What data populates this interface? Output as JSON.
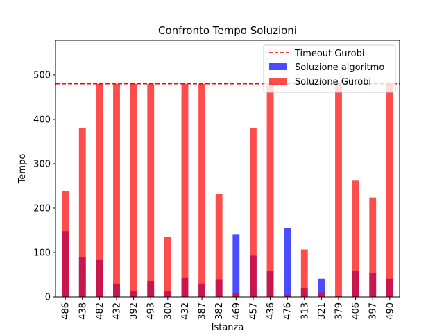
{
  "chart_data": {
    "type": "bar",
    "title": "Confronto Tempo Soluzioni",
    "xlabel": "Istanza",
    "ylabel": "Tempo",
    "categories": [
      "486",
      "438",
      "482",
      "432",
      "392",
      "493",
      "300",
      "432",
      "387",
      "382",
      "469",
      "457",
      "436",
      "476",
      "313",
      "321",
      "379",
      "406",
      "397",
      "490"
    ],
    "series": [
      {
        "name": "Soluzione algoritmo",
        "color": "#0000ff",
        "opacity": 0.7,
        "values": [
          148,
          90,
          83,
          30,
          13,
          36,
          14,
          44,
          30,
          40,
          140,
          93,
          58,
          155,
          20,
          41,
          3,
          58,
          53,
          41
        ]
      },
      {
        "name": "Soluzione Gurobi",
        "color": "#ff0000",
        "opacity": 0.7,
        "values": [
          238,
          380,
          480,
          480,
          480,
          480,
          135,
          480,
          480,
          232,
          8,
          381,
          480,
          5,
          107,
          10,
          480,
          262,
          224,
          480
        ]
      }
    ],
    "reference_line": {
      "name": "Timeout Gurobi",
      "value": 480,
      "color": "#ff0000",
      "style": "dashed"
    },
    "ylim": [
      0,
      578
    ],
    "yticks": [
      0,
      100,
      200,
      300,
      400,
      500
    ],
    "legend_position": "top-right",
    "grid": false
  }
}
